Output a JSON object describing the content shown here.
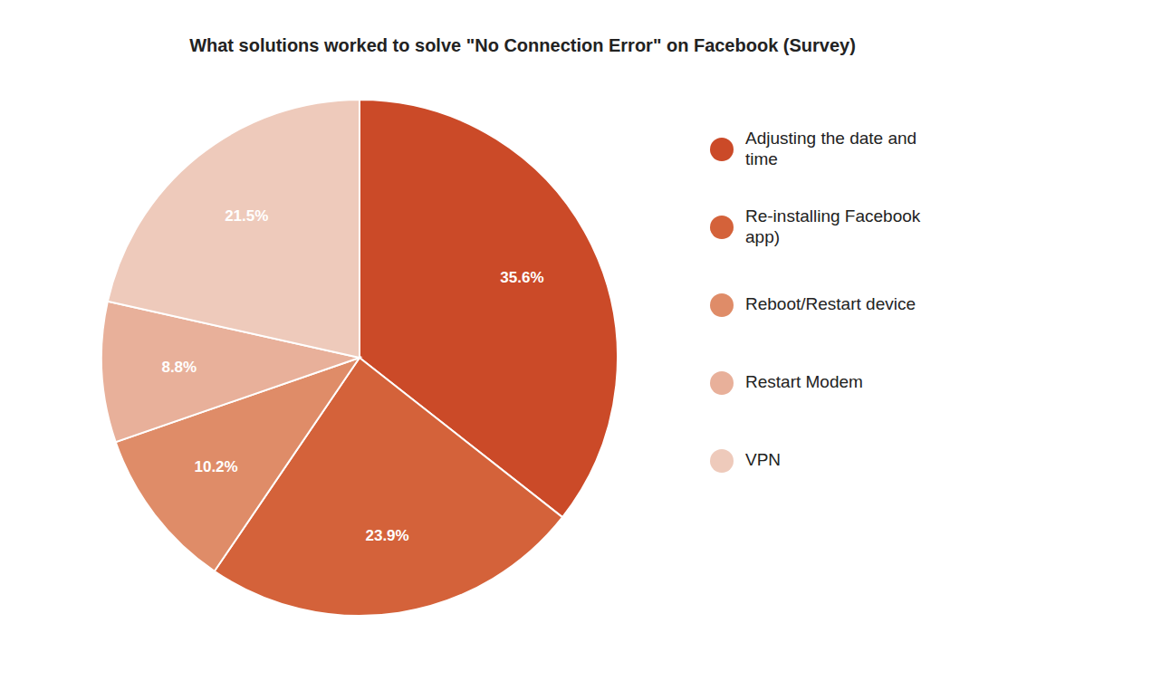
{
  "chart_data": {
    "type": "pie",
    "title": "What solutions worked to solve \"No Connection Error\" on Facebook (Survey)",
    "categories": [
      "Adjusting the date and\ntime",
      "Re-installing Facebook\napp)",
      "Reboot/Restart device",
      "Restart Modem",
      "VPN"
    ],
    "values": [
      35.6,
      23.9,
      10.2,
      8.8,
      21.5
    ],
    "value_labels": [
      "35.6%",
      "23.9%",
      "10.2%",
      "8.8%",
      "21.5%"
    ],
    "colors": [
      "#cb4a28",
      "#d4623a",
      "#df8c68",
      "#e8b09a",
      "#eecabb"
    ],
    "data_labels": true,
    "legend": "right"
  }
}
